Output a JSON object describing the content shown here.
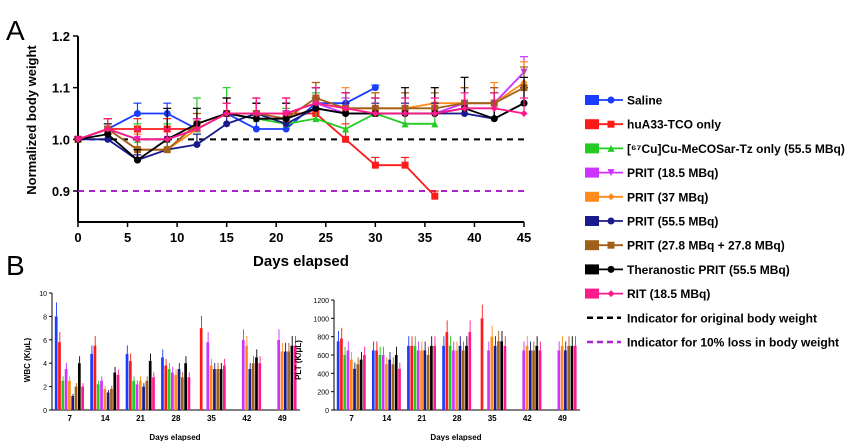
{
  "panel_labels": [
    "A",
    "B"
  ],
  "legend": [
    {
      "name": "Saline",
      "color": "#1a3cff",
      "marker": "circle"
    },
    {
      "name": "huA33-TCO only",
      "color": "#ff1a1a",
      "marker": "square"
    },
    {
      "name": "[⁶⁷Cu]Cu-MeCOSar-Tz only (55.5 MBq)",
      "color": "#22cc22",
      "marker": "triangle-up"
    },
    {
      "name": "PRIT (18.5 MBq)",
      "color": "#cc33ff",
      "marker": "triangle-down"
    },
    {
      "name": "PRIT (37 MBq)",
      "color": "#ff8c1a",
      "marker": "diamond"
    },
    {
      "name": "PRIT (55.5 MBq)",
      "color": "#1a1a8c",
      "marker": "circle"
    },
    {
      "name": "PRIT (27.8 MBq + 27.8 MBq)",
      "color": "#a0601a",
      "marker": "square"
    },
    {
      "name": "Theranostic PRIT (55.5 MBq)",
      "color": "#000000",
      "marker": "circle"
    },
    {
      "name": "RIT (18.5 MBq)",
      "color": "#ff1a8c",
      "marker": "diamond"
    },
    {
      "name": "Indicator for original body weight",
      "color": "#000000",
      "marker": "dash"
    },
    {
      "name": "Indicator for 10% loss in body weight",
      "color": "#aa22cc",
      "marker": "dash"
    }
  ],
  "chart_data": [
    {
      "type": "line",
      "panel": "A",
      "xlabel": "Days elapsed",
      "ylabel": "Normalized body weight",
      "xlim": [
        0,
        45
      ],
      "ylim": [
        0.84,
        1.2
      ],
      "xticks": [
        0,
        5,
        10,
        15,
        20,
        25,
        30,
        35,
        40,
        45
      ],
      "yticks": [
        0.9,
        1.0,
        1.1,
        1.2
      ],
      "reference_lines": [
        {
          "y": 1.0,
          "color": "#000000",
          "label": "Indicator for original body weight"
        },
        {
          "y": 0.9,
          "color": "#aa22cc",
          "label": "Indicator for 10% loss in body weight"
        }
      ],
      "series": [
        {
          "name": "Saline",
          "x": [
            0,
            3,
            6,
            9,
            12,
            15,
            18,
            21,
            24,
            27,
            30
          ],
          "y": [
            1.0,
            1.02,
            1.05,
            1.05,
            1.02,
            1.05,
            1.02,
            1.02,
            1.07,
            1.07,
            1.1
          ],
          "err": [
            0.005,
            0.02,
            0.02,
            0.02,
            0.02,
            0.03,
            0.03,
            0.02,
            0.03,
            0.02,
            0.005
          ]
        },
        {
          "name": "huA33-TCO only",
          "x": [
            0,
            3,
            6,
            9,
            12,
            15,
            18,
            21,
            24,
            27,
            30,
            33,
            36
          ],
          "y": [
            1.0,
            1.02,
            1.02,
            1.02,
            1.02,
            1.05,
            1.05,
            1.05,
            1.05,
            1.0,
            0.95,
            0.95,
            0.89
          ],
          "err": [
            0.005,
            0.02,
            0.02,
            0.02,
            0.02,
            0.02,
            0.02,
            0.03,
            0.03,
            0.03,
            0.015,
            0.015,
            0.01
          ]
        },
        {
          "name": "[⁶⁷Cu]Cu-MeCOSar-Tz only (55.5 MBq)",
          "x": [
            0,
            3,
            6,
            9,
            12,
            15,
            18,
            21,
            24,
            27,
            30,
            33,
            36
          ],
          "y": [
            1.0,
            1.02,
            1.0,
            1.0,
            1.02,
            1.05,
            1.04,
            1.03,
            1.04,
            1.02,
            1.05,
            1.03,
            1.03
          ],
          "err": [
            0.005,
            0.02,
            0.03,
            0.03,
            0.06,
            0.05,
            0.03,
            0.03,
            0.05,
            0.04,
            0.03,
            0.03,
            0.03
          ]
        },
        {
          "name": "PRIT (18.5 MBq)",
          "x": [
            0,
            3,
            6,
            9,
            12,
            15,
            18,
            21,
            24,
            27,
            30,
            33,
            36,
            39,
            42,
            45
          ],
          "y": [
            1.0,
            1.02,
            1.0,
            1.0,
            1.02,
            1.05,
            1.05,
            1.05,
            1.07,
            1.05,
            1.05,
            1.05,
            1.05,
            1.07,
            1.07,
            1.13
          ],
          "err": [
            0.005,
            0.02,
            0.02,
            0.02,
            0.02,
            0.03,
            0.03,
            0.03,
            0.03,
            0.03,
            0.03,
            0.03,
            0.03,
            0.03,
            0.03,
            0.03
          ]
        },
        {
          "name": "PRIT (37 MBq)",
          "x": [
            0,
            3,
            6,
            9,
            12,
            15,
            18,
            21,
            24,
            27,
            30,
            33,
            36,
            39,
            42,
            45
          ],
          "y": [
            1.0,
            1.02,
            0.98,
            0.98,
            1.02,
            1.05,
            1.05,
            1.05,
            1.07,
            1.06,
            1.06,
            1.06,
            1.07,
            1.07,
            1.07,
            1.11
          ],
          "err": [
            0.005,
            0.02,
            0.03,
            0.02,
            0.03,
            0.03,
            0.03,
            0.03,
            0.04,
            0.04,
            0.03,
            0.03,
            0.03,
            0.03,
            0.04,
            0.04
          ]
        },
        {
          "name": "PRIT (55.5 MBq)",
          "x": [
            0,
            3,
            6,
            9,
            12,
            15,
            18,
            21,
            24,
            27,
            30,
            33,
            36,
            39,
            42,
            45
          ],
          "y": [
            1.0,
            1.0,
            0.96,
            0.98,
            0.99,
            1.03,
            1.05,
            1.03,
            1.06,
            1.05,
            1.05,
            1.05,
            1.05,
            1.05,
            1.04,
            1.07
          ],
          "err": [
            0.005,
            0.01,
            0.01,
            0.02,
            0.02,
            0.02,
            0.02,
            0.02,
            0.02,
            0.02,
            0.02,
            0.02,
            0.02,
            0.02,
            0.02,
            0.03
          ]
        },
        {
          "name": "PRIT (27.8 MBq + 27.8 MBq)",
          "x": [
            0,
            3,
            6,
            9,
            12,
            15,
            18,
            21,
            24,
            27,
            30,
            33,
            36,
            39,
            42,
            45
          ],
          "y": [
            1.0,
            1.02,
            0.98,
            0.98,
            1.03,
            1.05,
            1.05,
            1.04,
            1.08,
            1.06,
            1.06,
            1.06,
            1.06,
            1.07,
            1.07,
            1.1
          ],
          "err": [
            0.005,
            0.02,
            0.02,
            0.02,
            0.02,
            0.02,
            0.03,
            0.03,
            0.03,
            0.03,
            0.03,
            0.03,
            0.03,
            0.03,
            0.03,
            0.04
          ]
        },
        {
          "name": "Theranostic PRIT (55.5 MBq)",
          "x": [
            0,
            3,
            6,
            9,
            12,
            15,
            18,
            21,
            24,
            27,
            30,
            33,
            36,
            39,
            42,
            45
          ],
          "y": [
            1.0,
            1.01,
            0.96,
            1.0,
            1.03,
            1.05,
            1.04,
            1.04,
            1.06,
            1.05,
            1.05,
            1.05,
            1.05,
            1.06,
            1.04,
            1.07
          ],
          "err": [
            0.005,
            0.02,
            0.02,
            0.06,
            0.03,
            0.03,
            0.03,
            0.03,
            0.04,
            0.04,
            0.03,
            0.05,
            0.05,
            0.06,
            0.05,
            0.05
          ]
        },
        {
          "name": "RIT (18.5 MBq)",
          "x": [
            0,
            3,
            6,
            9,
            12,
            15,
            18,
            21,
            24,
            27,
            30,
            33,
            36,
            39,
            42,
            45
          ],
          "y": [
            1.0,
            1.02,
            1.0,
            1.0,
            1.02,
            1.05,
            1.05,
            1.05,
            1.07,
            1.06,
            1.05,
            1.05,
            1.05,
            1.06,
            1.06,
            1.05
          ],
          "err": [
            0.005,
            0.02,
            0.02,
            0.02,
            0.02,
            0.02,
            0.03,
            0.03,
            0.03,
            0.03,
            0.03,
            0.03,
            0.03,
            0.03,
            0.03,
            0.03
          ]
        }
      ]
    },
    {
      "type": "bar",
      "panel": "B-left",
      "xlabel": "Days elapsed",
      "ylabel": "WBC (K/μL)",
      "ylim": [
        0,
        10
      ],
      "yticks": [
        0,
        2,
        4,
        6,
        8,
        10
      ],
      "categories": [
        "7",
        "14",
        "21",
        "28",
        "35",
        "42",
        "49"
      ],
      "series": [
        {
          "name": "Saline",
          "values": [
            8.0,
            4.8,
            4.8,
            4.5,
            null,
            null,
            null
          ]
        },
        {
          "name": "huA33-TCO only",
          "values": [
            5.8,
            5.5,
            4.2,
            3.8,
            7.0,
            null,
            null
          ]
        },
        {
          "name": "[⁶⁷Cu]Cu-MeCOSar-Tz only (55.5 MBq)",
          "values": [
            2.5,
            2.2,
            2.5,
            3.5,
            null,
            null,
            null
          ]
        },
        {
          "name": "PRIT (18.5 MBq)",
          "values": [
            3.5,
            2.5,
            2.2,
            3.2,
            5.8,
            6.0,
            6.0
          ]
        },
        {
          "name": "PRIT (37 MBq)",
          "values": [
            2.5,
            1.8,
            2.5,
            3.0,
            3.8,
            5.5,
            5.0
          ]
        },
        {
          "name": "PRIT (55.5 MBq)",
          "values": [
            1.2,
            1.5,
            2.0,
            3.5,
            3.5,
            3.5,
            5.0
          ]
        },
        {
          "name": "PRIT (27.8 MBq + 27.8 MBq)",
          "values": [
            2.0,
            1.8,
            2.5,
            2.8,
            3.5,
            4.0,
            5.0
          ]
        },
        {
          "name": "Theranostic PRIT (55.5 MBq)",
          "values": [
            4.0,
            3.2,
            4.2,
            4.0,
            3.5,
            4.5,
            5.5
          ]
        },
        {
          "name": "RIT (18.5 MBq)",
          "values": [
            2.0,
            3.0,
            2.8,
            2.8,
            3.8,
            4.0,
            5.5
          ]
        }
      ]
    },
    {
      "type": "bar",
      "panel": "B-right",
      "xlabel": "Days elapsed",
      "ylabel": "PLT (K/μL)",
      "ylim": [
        0,
        1200
      ],
      "yticks": [
        0,
        200,
        400,
        600,
        800,
        1000,
        1200
      ],
      "categories": [
        "7",
        "14",
        "21",
        "28",
        "35",
        "42",
        "49"
      ],
      "series": [
        {
          "name": "Saline",
          "values": [
            750,
            650,
            700,
            700,
            null,
            null,
            null
          ]
        },
        {
          "name": "huA33-TCO only",
          "values": [
            780,
            650,
            700,
            850,
            1000,
            null,
            null
          ]
        },
        {
          "name": "[⁶⁷Cu]Cu-MeCOSar-Tz only (55.5 MBq)",
          "values": [
            600,
            600,
            700,
            700,
            null,
            null,
            null
          ]
        },
        {
          "name": "PRIT (18.5 MBq)",
          "values": [
            650,
            600,
            650,
            650,
            650,
            650,
            650
          ]
        },
        {
          "name": "PRIT (37 MBq)",
          "values": [
            550,
            500,
            650,
            650,
            800,
            700,
            700
          ]
        },
        {
          "name": "PRIT (55.5 MBq)",
          "values": [
            450,
            550,
            650,
            700,
            700,
            650,
            650
          ]
        },
        {
          "name": "PRIT (27.8 MBq + 27.8 MBq)",
          "values": [
            500,
            500,
            600,
            650,
            750,
            650,
            700
          ]
        },
        {
          "name": "Theranostic PRIT (55.5 MBq)",
          "values": [
            550,
            600,
            700,
            700,
            750,
            700,
            700
          ]
        },
        {
          "name": "RIT (18.5 MBq)",
          "values": [
            600,
            450,
            700,
            850,
            700,
            650,
            700
          ]
        }
      ]
    }
  ]
}
